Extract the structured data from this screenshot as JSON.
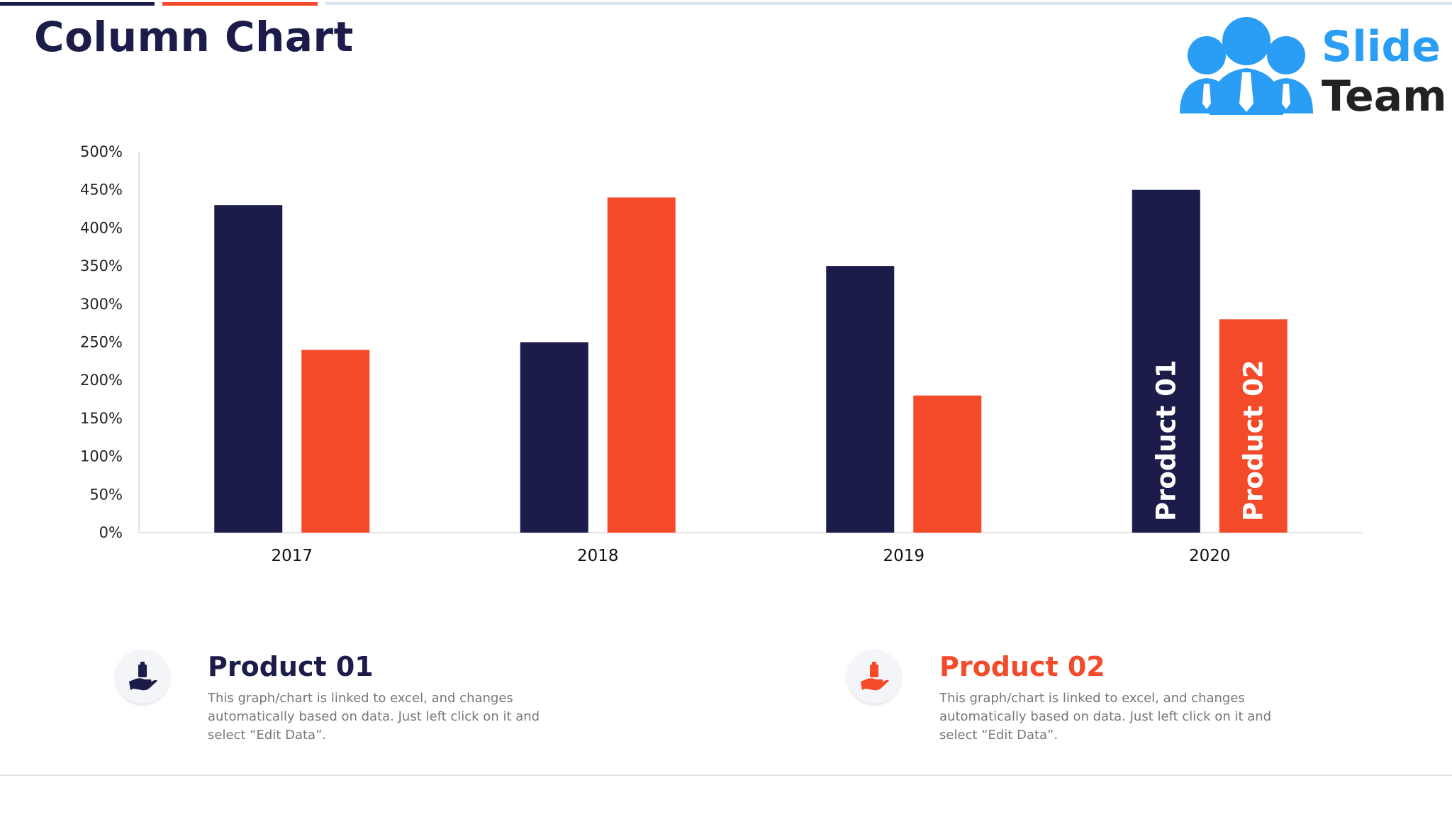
{
  "header": {
    "title": "Column Chart"
  },
  "logo": {
    "word1": "Slide",
    "word2": "Team"
  },
  "colors": {
    "product01": "#1c1c4a",
    "product02": "#f34b2a",
    "logo_blue": "#2a9df4",
    "logo_dark": "#222222",
    "top_line_light": "#d9e6f2"
  },
  "chart_data": {
    "type": "bar",
    "categories": [
      "2017",
      "2018",
      "2019",
      "2020"
    ],
    "series": [
      {
        "name": "Product 01",
        "values": [
          430,
          250,
          350,
          450
        ]
      },
      {
        "name": "Product 02",
        "values": [
          240,
          440,
          180,
          280
        ]
      }
    ],
    "yticks": [
      "0%",
      "50%",
      "100%",
      "150%",
      "200%",
      "250%",
      "300%",
      "350%",
      "400%",
      "450%",
      "500%"
    ],
    "ylim": [
      0,
      500
    ],
    "unit": "%",
    "grid": false,
    "legend_placement": "bottom",
    "inline_labels": {
      "category_index": 3,
      "labels": [
        "Product 01",
        "Product 02"
      ]
    }
  },
  "legend": [
    {
      "title": "Product 01",
      "icon": "hand-holding-bag-icon",
      "description": "This graph/chart is linked to excel, and changes automatically based on data. Just left click on it and select “Edit Data”."
    },
    {
      "title": "Product 02",
      "icon": "hand-holding-bag-icon",
      "description": "This graph/chart is linked to excel, and changes automatically based on data. Just left click on it and select “Edit Data”."
    }
  ]
}
